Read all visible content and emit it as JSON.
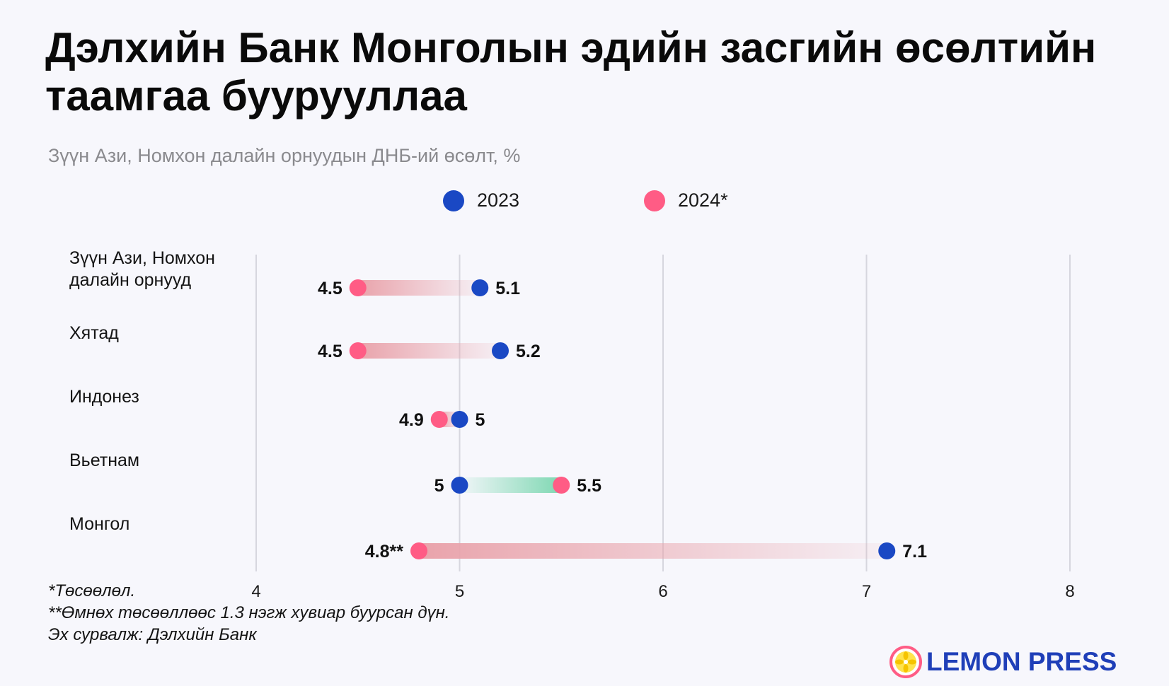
{
  "colors": {
    "y2023": "#1a48c4",
    "y2024": "#ff5c85",
    "bar_decrease": "#e9a3ab",
    "bar_increase": "#7fd8b3",
    "grid": "#d6d6de",
    "brand": "#1f3fb8"
  },
  "chart_data": {
    "type": "dumbbell",
    "title": "Дэлхийн Банк Монголын эдийн засгийн өсөлтийн таамгаа буурууллаа",
    "subtitle": "Зүүн Ази, Номхон далайн орнуудын ДНБ-ий өсөлт, %",
    "series": [
      {
        "name": "2023",
        "color": "#1a48c4"
      },
      {
        "name": "2024*",
        "color": "#ff5c85"
      }
    ],
    "x_ticks": [
      4,
      5,
      6,
      7,
      8
    ],
    "x_range": [
      4,
      8
    ],
    "grid": true,
    "legend_position": "top-center",
    "rows": [
      {
        "label_lines": [
          "Зүүн Ази, Номхон",
          "далайн орнууд"
        ],
        "v2023": 5.1,
        "v2024": 4.5,
        "label_2023": "5.1",
        "label_2024": "4.5"
      },
      {
        "label_lines": [
          "Хятад"
        ],
        "v2023": 5.2,
        "v2024": 4.5,
        "label_2023": "5.2",
        "label_2024": "4.5"
      },
      {
        "label_lines": [
          "Индонез"
        ],
        "v2023": 5.0,
        "v2024": 4.9,
        "label_2023": "5",
        "label_2024": "4.9"
      },
      {
        "label_lines": [
          "Вьетнам"
        ],
        "v2023": 5.0,
        "v2024": 5.5,
        "label_2023": "5",
        "label_2024": "5.5"
      },
      {
        "label_lines": [
          "Монгол"
        ],
        "v2023": 7.1,
        "v2024": 4.8,
        "label_2023": "7.1",
        "label_2024": "4.8**"
      }
    ]
  },
  "footnotes": [
    "*Төсөөлөл.",
    "**Өмнөх төсөөллөөс 1.3 нэгж хувиар буурсан дүн.",
    "Эх сурвалж: Дэлхийн Банк"
  ],
  "brand": {
    "name": "LEMON PRESS",
    "logo_icon": "lemon-slice-icon"
  }
}
